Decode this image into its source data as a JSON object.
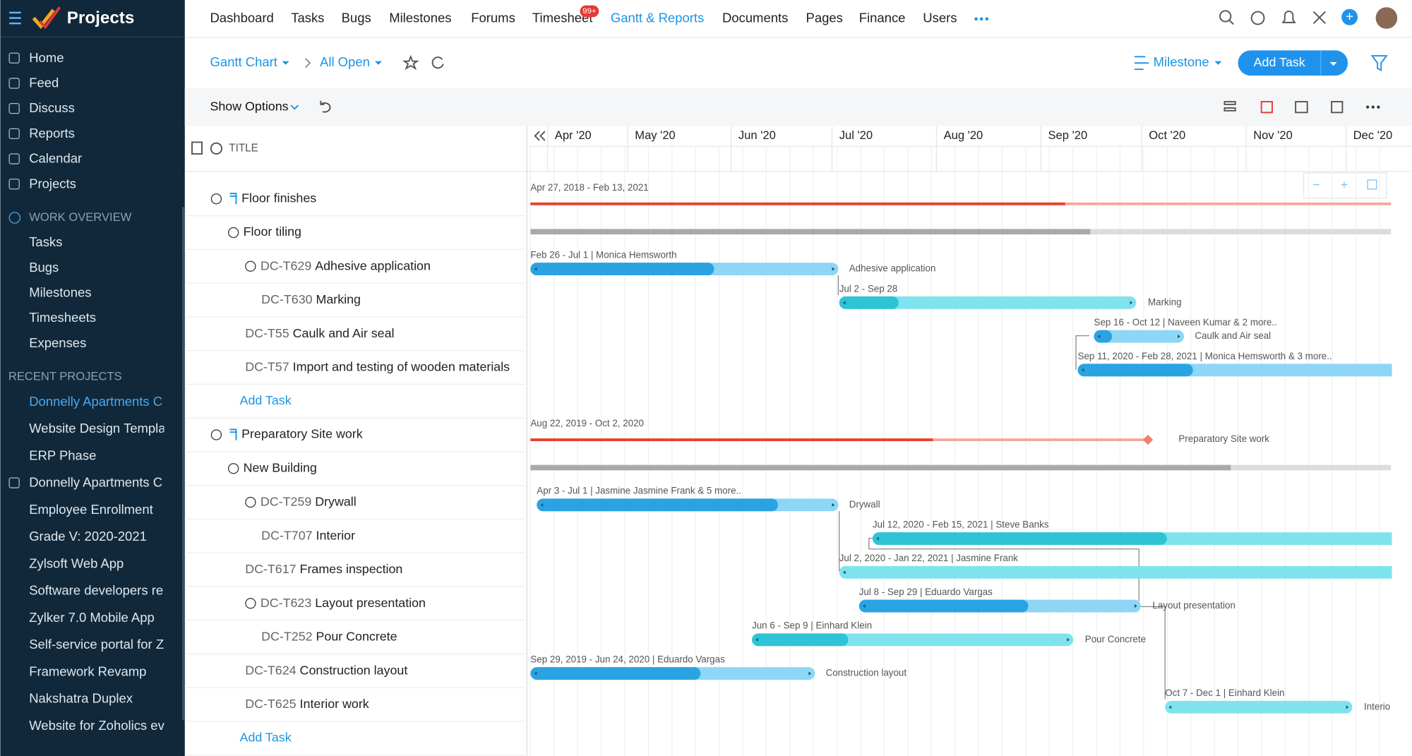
{
  "app_title": "Projects",
  "sidebar": {
    "items": [
      "Home",
      "Feed",
      "Discuss",
      "Reports",
      "Calendar",
      "Projects"
    ],
    "work_overview": {
      "title": "WORK OVERVIEW",
      "items": [
        "Tasks",
        "Bugs",
        "Milestones",
        "Timesheets",
        "Expenses"
      ]
    },
    "recent_projects": {
      "title": "RECENT PROJECTS",
      "items": [
        "Donnelly Apartments C",
        "Website Design Templa",
        "ERP Phase",
        "Donnelly Apartments C",
        "Employee Enrollment",
        "Grade V: 2020-2021",
        "Zylsoft Web App",
        "Software developers re",
        "Zylker 7.0 Mobile App",
        "Self-service portal for Z",
        "Framework Revamp",
        "Nakshatra Duplex",
        "Website for Zoholics ev"
      ]
    }
  },
  "tabs": [
    "Dashboard",
    "Tasks",
    "Bugs",
    "Milestones",
    "Forums",
    "Timesheet",
    "Gantt & Reports",
    "Documents",
    "Pages",
    "Finance",
    "Users"
  ],
  "timesheet_badge": "99+",
  "toolbar": {
    "view": "Gantt Chart",
    "filter": "All Open",
    "group_by": "Milestone",
    "add_task": "Add Task",
    "show_options": "Show Options"
  },
  "table": {
    "column": "TITLE",
    "rows": [
      {
        "name": "Floor finishes"
      },
      {
        "name": "Floor tiling"
      },
      {
        "id": "DC-T629",
        "name": "Adhesive application"
      },
      {
        "id": "DC-T630",
        "name": "Marking"
      },
      {
        "id": "DC-T55",
        "name": "Caulk and Air seal"
      },
      {
        "id": "DC-T57",
        "name": "Import and testing of wooden materials"
      },
      {
        "name": "Add Task"
      },
      {
        "name": "Preparatory Site work"
      },
      {
        "name": "New Building"
      },
      {
        "id": "DC-T259",
        "name": "Drywall"
      },
      {
        "id": "DC-T707",
        "name": "Interior"
      },
      {
        "id": "DC-T617",
        "name": "Frames inspection"
      },
      {
        "id": "DC-T623",
        "name": "Layout presentation"
      },
      {
        "id": "DC-T252",
        "name": "Pour Concrete"
      },
      {
        "id": "DC-T624",
        "name": "Construction layout"
      },
      {
        "id": "DC-T625",
        "name": "Interior work"
      },
      {
        "name": "Add Task"
      }
    ]
  },
  "gantt": {
    "months": [
      "Apr '20",
      "May '20",
      "Jun '20",
      "Jul '20",
      "Aug '20",
      "Sep '20",
      "Oct '20",
      "Nov '20",
      "Dec '20"
    ],
    "items": [
      {
        "date": "Apr 27, 2018 - Feb 13, 2021"
      },
      {},
      {
        "date": "Feb 26 - Jul 1 | Monica Hemsworth",
        "label": "Adhesive application"
      },
      {
        "date": "Jul 2 - Sep 28",
        "label": "Marking"
      },
      {
        "date": "Sep 16 - Oct 12 | Naveen Kumar & 2 more..",
        "label": "Caulk and Air seal"
      },
      {
        "date": "Sep 11, 2020 - Feb 28, 2021 | Monica Hemsworth & 3 more.."
      },
      {},
      {
        "date": "Aug 22, 2019 - Oct 2, 2020",
        "label": "Preparatory Site work"
      },
      {},
      {
        "date": "Apr 3 - Jul 1 | Jasmine Jasmine Frank & 5 more..",
        "label": "Drywall"
      },
      {
        "date": "Jul 12, 2020 - Feb 15, 2021 | Steve Banks"
      },
      {
        "date": "Jul 2, 2020 - Jan 22, 2021 | Jasmine Frank"
      },
      {
        "date": "Jul 8 - Sep 29 | Eduardo Vargas",
        "label": "Layout presentation"
      },
      {
        "date": "Jun 6 - Sep 9 | Einhard Klein",
        "label": "Pour Concrete"
      },
      {
        "date": "Sep 29, 2019 - Jun 24, 2020 | Eduardo Vargas",
        "label": "Construction layout"
      },
      {
        "date": "Oct 7 - Dec 1 | Einhard Klein",
        "label": "Interio"
      },
      {}
    ]
  }
}
